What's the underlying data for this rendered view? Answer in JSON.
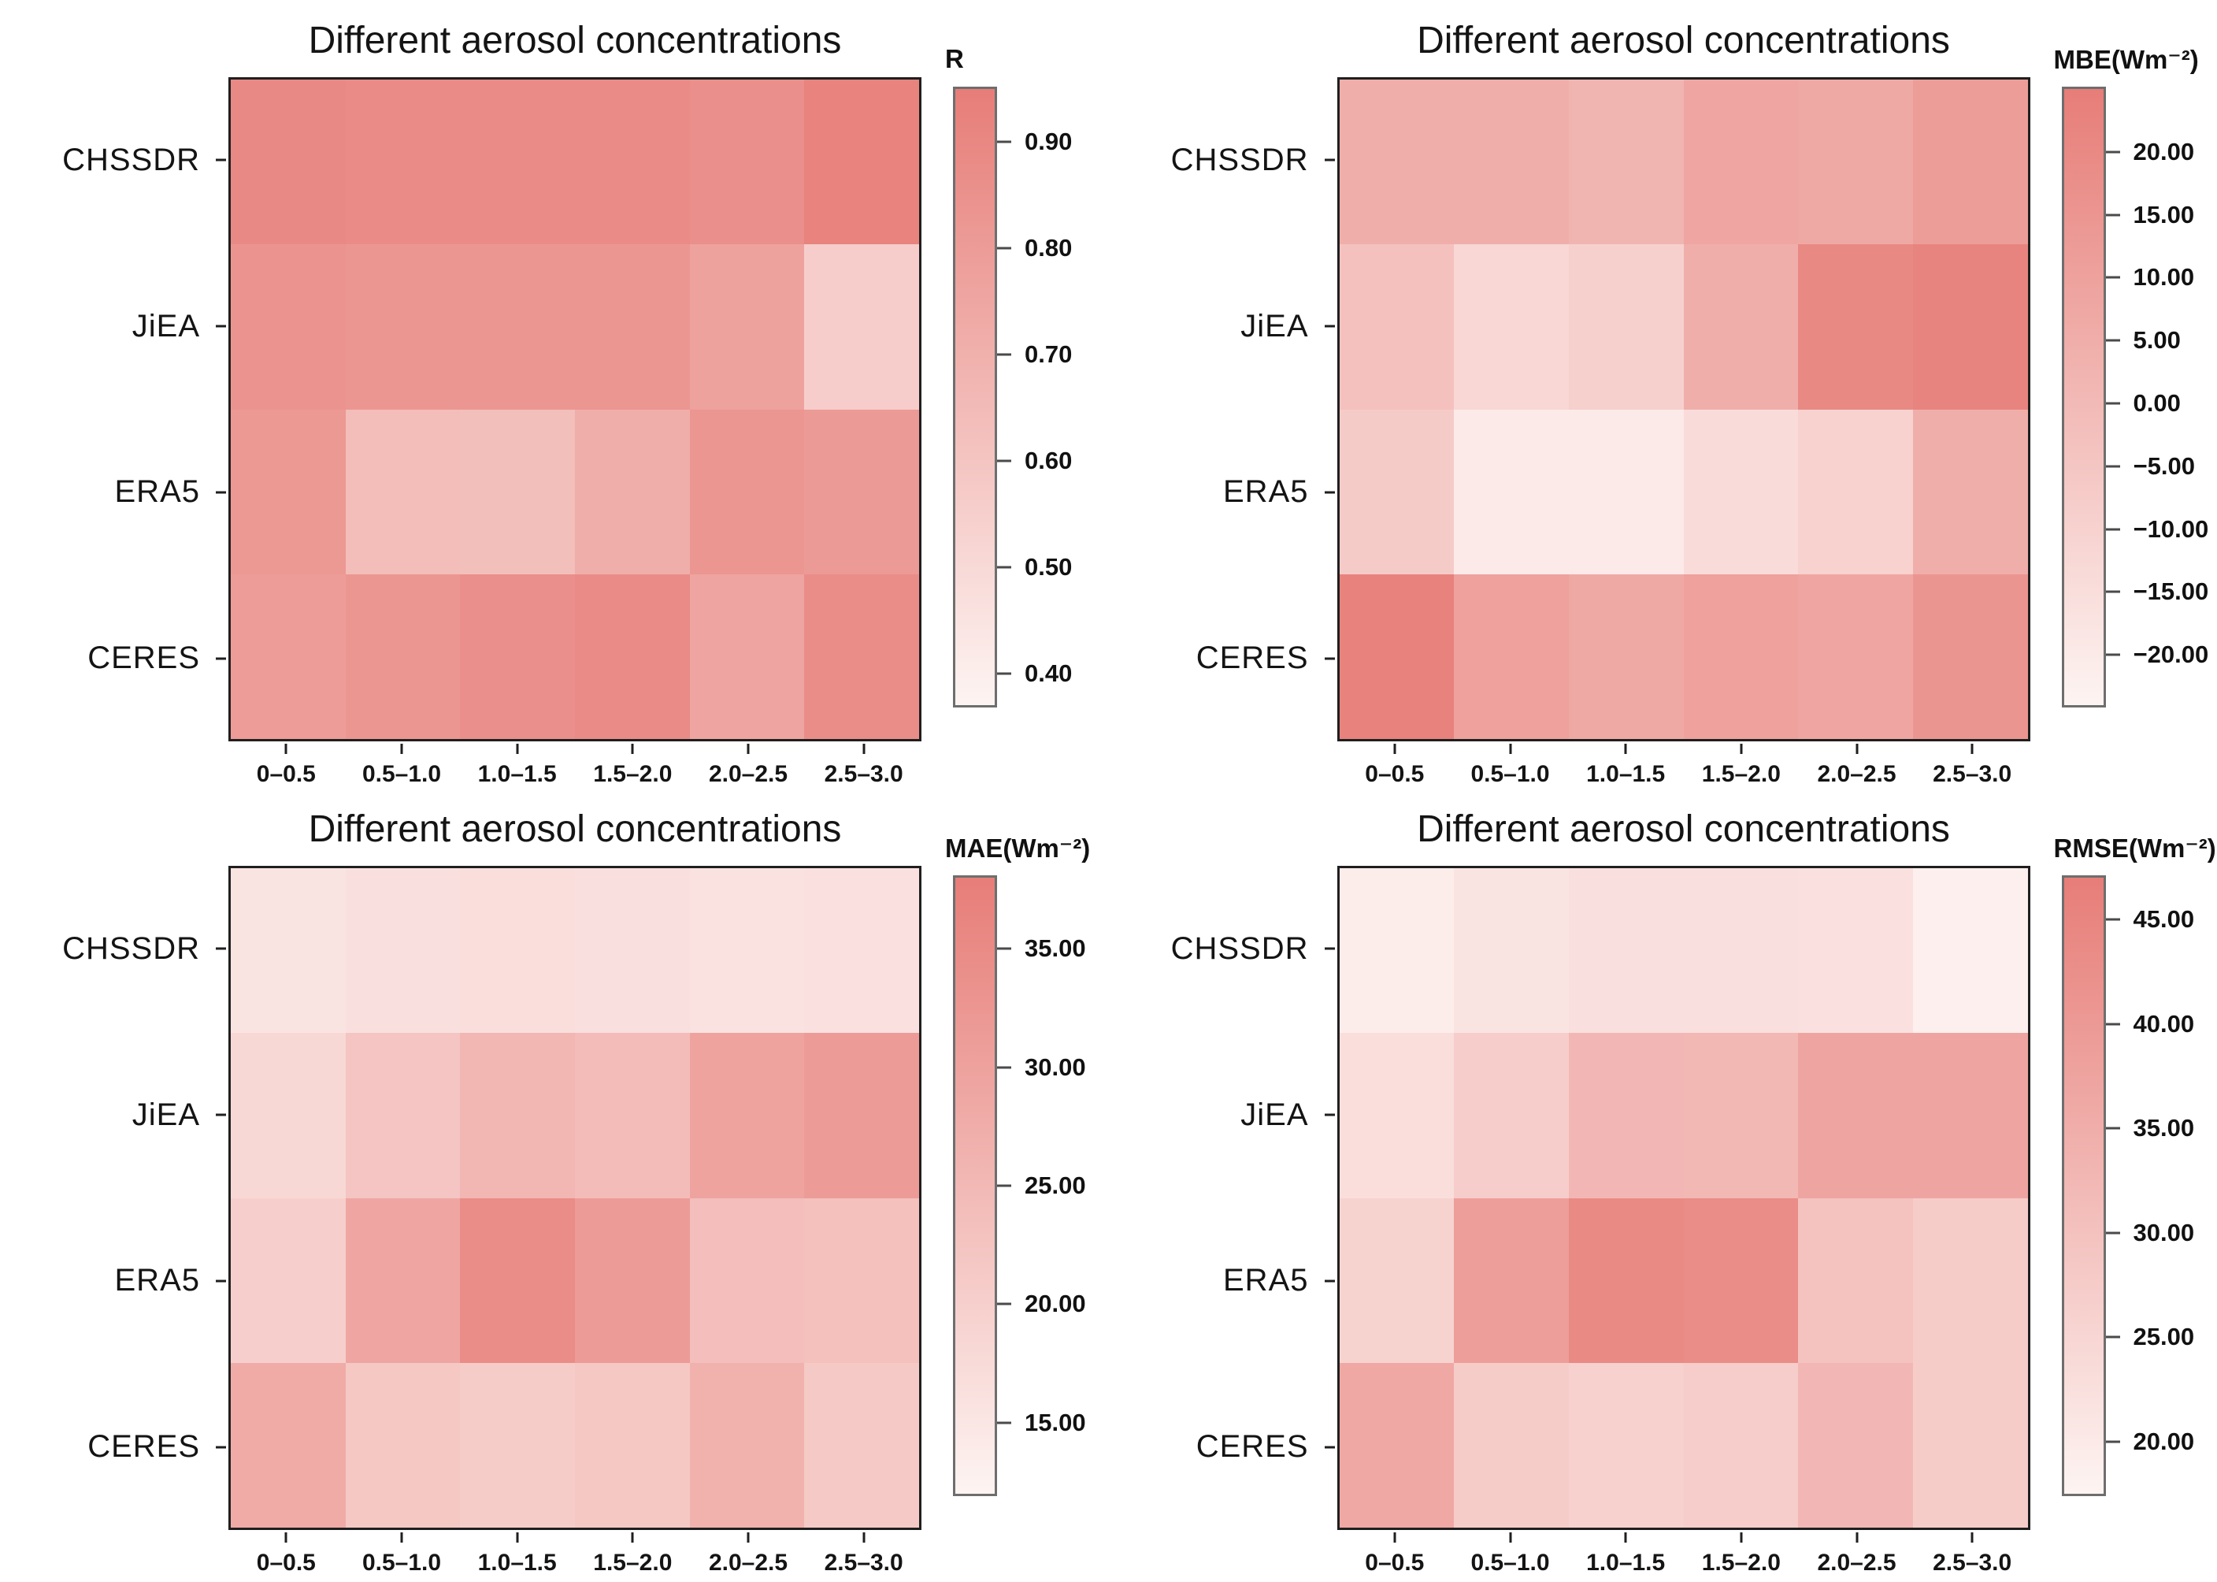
{
  "figure": {
    "background": "#ffffff",
    "colormap": {
      "low": "#fdf4f2",
      "high": "#e77d78"
    },
    "grid": "off",
    "legend": "none"
  },
  "chart_data": [
    {
      "id": "r",
      "type": "heatmap",
      "title": "Different aerosol concentrations",
      "colorbar_label": "R",
      "colorbar_position": "right",
      "rows": [
        "CHSSDR",
        "JiEA",
        "ERA5",
        "CERES"
      ],
      "columns": [
        "0–0.5",
        "0.5–1.0",
        "1.0–1.5",
        "1.5–2.0",
        "2.0–2.5",
        "2.5–3.0"
      ],
      "vmin": 0.37,
      "vmax": 0.95,
      "colorbar_ticks": [
        {
          "v": 0.9,
          "label": "0.90"
        },
        {
          "v": 0.8,
          "label": "0.80"
        },
        {
          "v": 0.7,
          "label": "0.70"
        },
        {
          "v": 0.6,
          "label": "0.60"
        },
        {
          "v": 0.5,
          "label": "0.50"
        },
        {
          "v": 0.4,
          "label": "0.40"
        }
      ],
      "values": [
        [
          0.89,
          0.88,
          0.88,
          0.88,
          0.86,
          0.92
        ],
        [
          0.84,
          0.83,
          0.83,
          0.83,
          0.77,
          0.56
        ],
        [
          0.82,
          0.64,
          0.63,
          0.71,
          0.83,
          0.81
        ],
        [
          0.8,
          0.83,
          0.86,
          0.88,
          0.76,
          0.87
        ]
      ]
    },
    {
      "id": "mbe",
      "type": "heatmap",
      "title": "Different aerosol concentrations",
      "colorbar_label": "MBE(Wm⁻²)",
      "colorbar_position": "right",
      "rows": [
        "CHSSDR",
        "JiEA",
        "ERA5",
        "CERES"
      ],
      "columns": [
        "0–0.5",
        "0.5–1.0",
        "1.0–1.5",
        "1.5–2.0",
        "2.0–2.5",
        "2.5–3.0"
      ],
      "vmin": -24,
      "vmax": 25,
      "colorbar_ticks": [
        {
          "v": 20,
          "label": "20.00"
        },
        {
          "v": 15,
          "label": "15.00"
        },
        {
          "v": 10,
          "label": "10.00"
        },
        {
          "v": 5,
          "label": "5.00"
        },
        {
          "v": 0,
          "label": "0.00"
        },
        {
          "v": -5,
          "label": "−5.00"
        },
        {
          "v": -10,
          "label": "−10.00"
        },
        {
          "v": -15,
          "label": "−15.00"
        },
        {
          "v": -20,
          "label": "−20.00"
        }
      ],
      "values": [
        [
          5,
          5,
          2,
          8,
          7,
          12
        ],
        [
          -3,
          -12,
          -9,
          5,
          20,
          22
        ],
        [
          -7,
          -20,
          -20,
          -14,
          -10,
          5
        ],
        [
          23,
          10,
          7,
          10,
          8,
          15
        ]
      ]
    },
    {
      "id": "mae",
      "type": "heatmap",
      "title": "Different aerosol concentrations",
      "colorbar_label": "MAE(Wm⁻²)",
      "colorbar_position": "right",
      "rows": [
        "CHSSDR",
        "JiEA",
        "ERA5",
        "CERES"
      ],
      "columns": [
        "0–0.5",
        "0.5–1.0",
        "1.0–1.5",
        "1.5–2.0",
        "2.0–2.5",
        "2.5–3.0"
      ],
      "vmin": 12,
      "vmax": 38,
      "colorbar_ticks": [
        {
          "v": 35,
          "label": "35.00"
        },
        {
          "v": 30,
          "label": "30.00"
        },
        {
          "v": 25,
          "label": "25.00"
        },
        {
          "v": 20,
          "label": "20.00"
        },
        {
          "v": 15,
          "label": "15.00"
        }
      ],
      "values": [
        [
          15.6,
          16.3,
          16.7,
          16.5,
          15.9,
          16.1
        ],
        [
          18.2,
          22.3,
          25.5,
          24.2,
          29.6,
          31.5
        ],
        [
          20.0,
          29.0,
          34.8,
          31.5,
          23.8,
          23.2
        ],
        [
          27.9,
          21.7,
          20.8,
          21.7,
          26.6,
          21.5
        ]
      ]
    },
    {
      "id": "rmse",
      "type": "heatmap",
      "title": "Different aerosol concentrations",
      "colorbar_label": "RMSE(Wm⁻²)",
      "colorbar_position": "right",
      "rows": [
        "CHSSDR",
        "JiEA",
        "ERA5",
        "CERES"
      ],
      "columns": [
        "0–0.5",
        "0.5–1.0",
        "1.0–1.5",
        "1.5–2.0",
        "2.0–2.5",
        "2.5–3.0"
      ],
      "vmin": 17.5,
      "vmax": 47,
      "colorbar_ticks": [
        {
          "v": 45,
          "label": "45.00"
        },
        {
          "v": 40,
          "label": "40.00"
        },
        {
          "v": 35,
          "label": "35.00"
        },
        {
          "v": 30,
          "label": "30.00"
        },
        {
          "v": 25,
          "label": "25.00"
        },
        {
          "v": 20,
          "label": "20.00"
        }
      ],
      "values": [
        [
          19.2,
          21.4,
          22.6,
          22.6,
          22.1,
          18.7
        ],
        [
          22.9,
          27.2,
          32.6,
          32.4,
          37.2,
          37.2
        ],
        [
          25.8,
          38.7,
          43.8,
          43.3,
          29.7,
          27.5
        ],
        [
          36.3,
          27.5,
          26.3,
          27.2,
          32.6,
          27.5
        ]
      ]
    }
  ]
}
